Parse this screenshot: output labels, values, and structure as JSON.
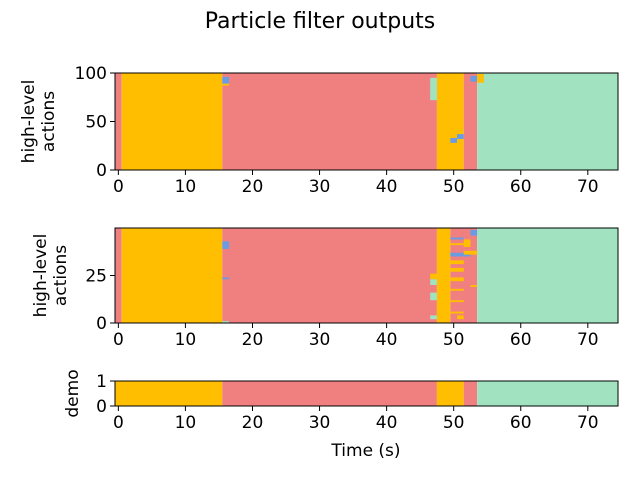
{
  "colors": {
    "orange": "#FFBF00",
    "red": "#F08080",
    "green": "#A1E3C1",
    "blue": "#6A9CE3"
  },
  "chart_data": [
    {
      "type": "heatmap",
      "title": "Particle filter outputs",
      "ylabel": [
        "high-level",
        "actions"
      ],
      "xlim": [
        -0.5,
        74.5
      ],
      "ylim": [
        0,
        100
      ],
      "xticks": [
        0,
        10,
        20,
        30,
        40,
        50,
        60,
        70
      ],
      "yticks": [
        0,
        50,
        100
      ],
      "segments": [
        {
          "x0": -0.5,
          "x1": 0.5,
          "color": "red"
        },
        {
          "x0": 0.5,
          "x1": 15.5,
          "color": "orange"
        },
        {
          "x0": 15.5,
          "x1": 47.5,
          "color": "red"
        },
        {
          "x0": 47.5,
          "x1": 51.5,
          "color": "orange"
        },
        {
          "x0": 51.5,
          "x1": 53.5,
          "color": "red"
        },
        {
          "x0": 53.5,
          "x1": 74.5,
          "color": "green"
        }
      ],
      "patches": [
        {
          "x0": 15.5,
          "x1": 16.5,
          "y0": 88,
          "y1": 96,
          "color": "blue"
        },
        {
          "x0": 15.5,
          "x1": 16.5,
          "y0": 87,
          "y1": 89,
          "color": "orange"
        },
        {
          "x0": 46.5,
          "x1": 47.5,
          "y0": 72,
          "y1": 95,
          "color": "green"
        },
        {
          "x0": 49.5,
          "x1": 50.5,
          "y0": 28,
          "y1": 33,
          "color": "blue"
        },
        {
          "x0": 50.5,
          "x1": 51.5,
          "y0": 32,
          "y1": 37,
          "color": "blue"
        },
        {
          "x0": 52.5,
          "x1": 53.5,
          "y0": 91,
          "y1": 97,
          "color": "blue"
        },
        {
          "x0": 53.5,
          "x1": 54.5,
          "y0": 90,
          "y1": 99,
          "color": "orange"
        }
      ]
    },
    {
      "type": "heatmap",
      "ylabel": [
        "high-level",
        "actions"
      ],
      "xlim": [
        -0.5,
        74.5
      ],
      "ylim": [
        0,
        50
      ],
      "xticks": [
        0,
        10,
        20,
        30,
        40,
        50,
        60,
        70
      ],
      "yticks": [
        0,
        25
      ],
      "segments": [
        {
          "x0": -0.5,
          "x1": 0.5,
          "color": "red"
        },
        {
          "x0": 0.5,
          "x1": 15.5,
          "color": "orange"
        },
        {
          "x0": 15.5,
          "x1": 47.5,
          "color": "red"
        },
        {
          "x0": 47.5,
          "x1": 49.5,
          "color": "orange"
        },
        {
          "x0": 49.5,
          "x1": 53.5,
          "color": "red"
        },
        {
          "x0": 53.5,
          "x1": 74.5,
          "color": "green"
        }
      ],
      "patches": [
        {
          "x0": 15.5,
          "x1": 16.5,
          "y0": 39,
          "y1": 43,
          "color": "blue"
        },
        {
          "x0": 15.5,
          "x1": 16.5,
          "y0": 23,
          "y1": 24,
          "color": "blue"
        },
        {
          "x0": 15.5,
          "x1": 16.5,
          "y0": 0,
          "y1": 1,
          "color": "green"
        },
        {
          "x0": 46.5,
          "x1": 47.5,
          "y0": 23,
          "y1": 26,
          "color": "orange"
        },
        {
          "x0": 46.5,
          "x1": 47.5,
          "y0": 20,
          "y1": 23,
          "color": "green"
        },
        {
          "x0": 46.5,
          "x1": 47.5,
          "y0": 12,
          "y1": 16,
          "color": "green"
        },
        {
          "x0": 46.5,
          "x1": 47.5,
          "y0": 2,
          "y1": 4,
          "color": "green"
        },
        {
          "x0": 49.5,
          "x1": 51.5,
          "y0": 44,
          "y1": 45,
          "color": "blue"
        },
        {
          "x0": 49.5,
          "x1": 51.5,
          "y0": 41,
          "y1": 42,
          "color": "orange"
        },
        {
          "x0": 49.5,
          "x1": 52.5,
          "y0": 35,
          "y1": 37,
          "color": "blue"
        },
        {
          "x0": 49.5,
          "x1": 51.5,
          "y0": 31,
          "y1": 33,
          "color": "orange"
        },
        {
          "x0": 49.5,
          "x1": 51.5,
          "y0": 27,
          "y1": 29,
          "color": "orange"
        },
        {
          "x0": 49.5,
          "x1": 51.5,
          "y0": 22,
          "y1": 24,
          "color": "orange"
        },
        {
          "x0": 49.5,
          "x1": 51.5,
          "y0": 17,
          "y1": 18,
          "color": "orange"
        },
        {
          "x0": 49.5,
          "x1": 51.5,
          "y0": 11,
          "y1": 12,
          "color": "orange"
        },
        {
          "x0": 49.5,
          "x1": 51.5,
          "y0": 5,
          "y1": 6,
          "color": "orange"
        },
        {
          "x0": 50.5,
          "x1": 51.5,
          "y0": 2,
          "y1": 4,
          "color": "orange"
        },
        {
          "x0": 52.5,
          "x1": 53.5,
          "y0": 46,
          "y1": 49,
          "color": "blue"
        },
        {
          "x0": 51.5,
          "x1": 53.5,
          "y0": 36,
          "y1": 38,
          "color": "orange"
        },
        {
          "x0": 52.5,
          "x1": 53.5,
          "y0": 19,
          "y1": 20,
          "color": "orange"
        },
        {
          "x0": 51.5,
          "x1": 52.5,
          "y0": 40,
          "y1": 44,
          "color": "orange"
        }
      ]
    },
    {
      "type": "heatmap",
      "ylabel": [
        "demo"
      ],
      "xlabel": "Time (s)",
      "xlim": [
        -0.5,
        74.5
      ],
      "ylim": [
        0,
        1
      ],
      "xticks": [
        0,
        10,
        20,
        30,
        40,
        50,
        60,
        70
      ],
      "yticks": [
        0,
        1
      ],
      "segments": [
        {
          "x0": -0.5,
          "x1": 15.5,
          "color": "orange"
        },
        {
          "x0": 15.5,
          "x1": 47.5,
          "color": "red"
        },
        {
          "x0": 47.5,
          "x1": 51.5,
          "color": "orange"
        },
        {
          "x0": 51.5,
          "x1": 53.5,
          "color": "red"
        },
        {
          "x0": 53.5,
          "x1": 74.5,
          "color": "green"
        }
      ],
      "patches": []
    }
  ]
}
